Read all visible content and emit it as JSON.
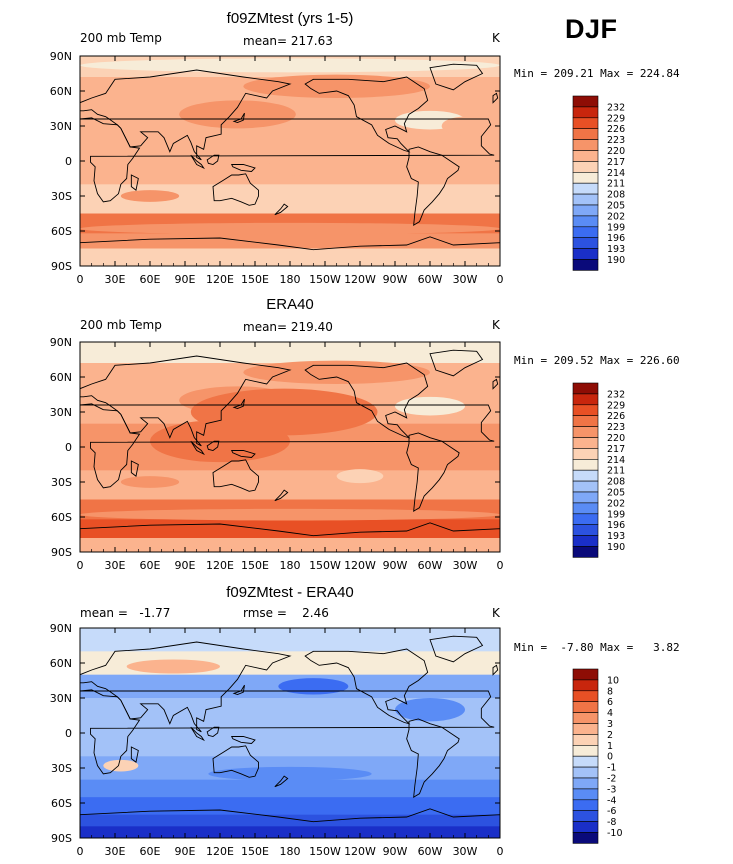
{
  "season": "DJF",
  "colors": {
    "temp": [
      "#0a0a7a",
      "#1a2fc8",
      "#2c52e0",
      "#3b6cf2",
      "#5a8cf5",
      "#7fa8f7",
      "#a3c2f8",
      "#c6dbfa",
      "#f7ecd8",
      "#fcd2b5",
      "#fbb38e",
      "#f69469",
      "#f07446",
      "#e85025",
      "#c8260d",
      "#8e0d05"
    ],
    "diff": [
      "#0a0a7a",
      "#1a2fc8",
      "#2c52e0",
      "#3b6cf2",
      "#5a8cf5",
      "#7fa8f7",
      "#a3c2f8",
      "#c6dbfa",
      "#f7ecd8",
      "#fcd2b5",
      "#fbb38e",
      "#f69469",
      "#f07446",
      "#e85025",
      "#c8260d",
      "#8e0d05"
    ]
  },
  "xticks": [
    "0",
    "30E",
    "60E",
    "90E",
    "120E",
    "150E",
    "180",
    "150W",
    "120W",
    "90W",
    "60W",
    "30W",
    "0"
  ],
  "yticks": [
    "90N",
    "60N",
    "30N",
    "0",
    "30S",
    "60S",
    "90S"
  ],
  "panels": [
    {
      "title": "f09ZMtest (yrs 1-5)",
      "left_label": "200 mb Temp",
      "center_label": "mean= 217.63",
      "right_label": "K",
      "minmax": "Min = 209.21 Max = 224.84",
      "legend": [
        "232",
        "229",
        "226",
        "223",
        "220",
        "217",
        "214",
        "211",
        "208",
        "205",
        "202",
        "199",
        "196",
        "193",
        "190"
      ]
    },
    {
      "title": "ERA40",
      "left_label": "200 mb Temp",
      "center_label": "mean= 219.40",
      "right_label": "K",
      "minmax": "Min = 209.52 Max = 226.60",
      "legend": [
        "232",
        "229",
        "226",
        "223",
        "220",
        "217",
        "214",
        "211",
        "208",
        "205",
        "202",
        "199",
        "196",
        "193",
        "190"
      ]
    },
    {
      "title": "f09ZMtest - ERA40",
      "left_label": "mean =   -1.77",
      "center_label": "rmse =    2.46",
      "right_label": "K",
      "minmax": "Min =  -7.80 Max =   3.82",
      "legend": [
        "10",
        "8",
        "6",
        "4",
        "3",
        "2",
        "1",
        "0",
        "-1",
        "-2",
        "-3",
        "-4",
        "-6",
        "-8",
        "-10"
      ]
    }
  ],
  "chart_data": [
    {
      "type": "heatmap",
      "title": "f09ZMtest (yrs 1-5)",
      "variable": "200 mb Temp",
      "units": "K",
      "mean": 217.63,
      "min": 209.21,
      "max": 224.84,
      "xlabels": [
        "0",
        "30E",
        "60E",
        "90E",
        "120E",
        "150E",
        "180",
        "150W",
        "120W",
        "90W",
        "60W",
        "30W",
        "0"
      ],
      "ylabels": [
        "90N",
        "60N",
        "30N",
        "0",
        "30S",
        "60S",
        "90S"
      ],
      "contour_levels": [
        190,
        193,
        196,
        199,
        202,
        205,
        208,
        211,
        214,
        217,
        220,
        223,
        226,
        229,
        232
      ]
    },
    {
      "type": "heatmap",
      "title": "ERA40",
      "variable": "200 mb Temp",
      "units": "K",
      "mean": 219.4,
      "min": 209.52,
      "max": 226.6,
      "xlabels": [
        "0",
        "30E",
        "60E",
        "90E",
        "120E",
        "150E",
        "180",
        "150W",
        "120W",
        "90W",
        "60W",
        "30W",
        "0"
      ],
      "ylabels": [
        "90N",
        "60N",
        "30N",
        "0",
        "30S",
        "60S",
        "90S"
      ],
      "contour_levels": [
        190,
        193,
        196,
        199,
        202,
        205,
        208,
        211,
        214,
        217,
        220,
        223,
        226,
        229,
        232
      ]
    },
    {
      "type": "heatmap",
      "title": "f09ZMtest - ERA40",
      "units": "K",
      "mean": -1.77,
      "rmse": 2.46,
      "min": -7.8,
      "max": 3.82,
      "xlabels": [
        "0",
        "30E",
        "60E",
        "90E",
        "120E",
        "150E",
        "180",
        "150W",
        "120W",
        "90W",
        "60W",
        "30W",
        "0"
      ],
      "ylabels": [
        "90N",
        "60N",
        "30N",
        "0",
        "30S",
        "60S",
        "90S"
      ],
      "contour_levels": [
        -10,
        -8,
        -6,
        -4,
        -3,
        -2,
        -1,
        0,
        1,
        2,
        3,
        4,
        6,
        8,
        10
      ]
    }
  ]
}
